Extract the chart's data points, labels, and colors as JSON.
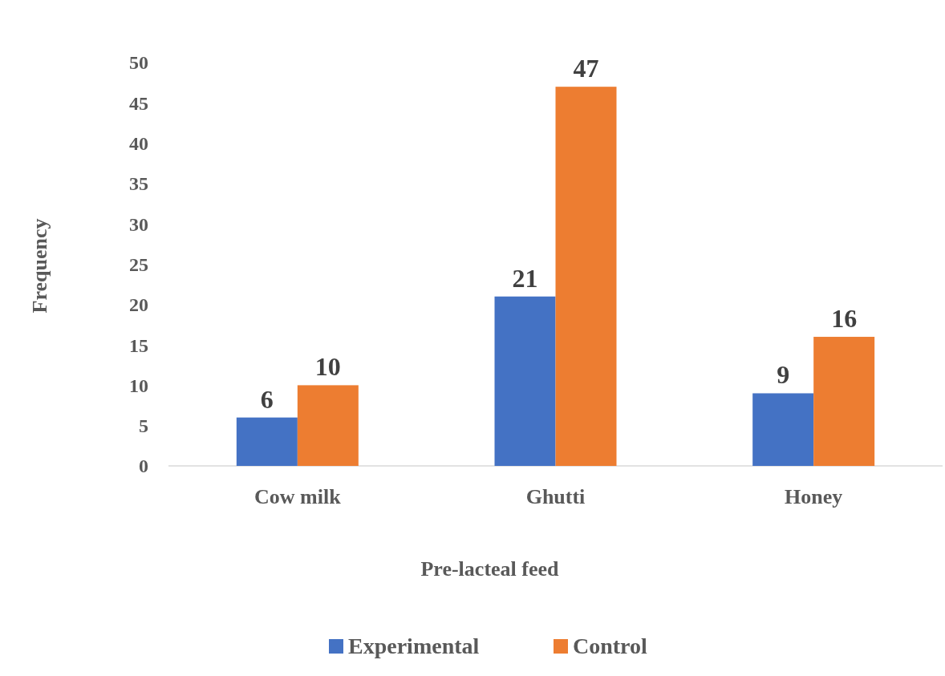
{
  "chart_data": {
    "type": "bar",
    "xlabel": "Pre-lacteal feed",
    "ylabel": "Frequency",
    "categories": [
      "Cow milk",
      "Ghutti",
      "Honey"
    ],
    "series": [
      {
        "name": "Experimental",
        "color": "#4472c4",
        "values": [
          6,
          21,
          9
        ]
      },
      {
        "name": "Control",
        "color": "#ed7d31",
        "values": [
          10,
          47,
          16
        ]
      }
    ],
    "ylim": [
      0,
      50
    ],
    "yticks": [
      0,
      5,
      10,
      15,
      20,
      25,
      30,
      35,
      40,
      45,
      50
    ],
    "grid": false,
    "legend": "bottom",
    "data_labels": true
  }
}
